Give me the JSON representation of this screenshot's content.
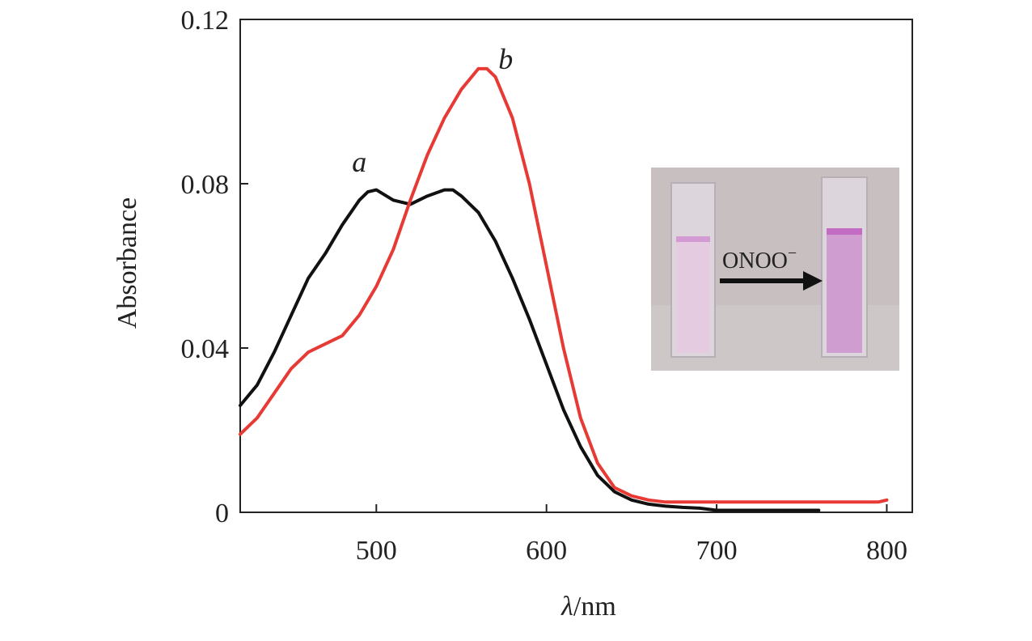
{
  "chart_data": {
    "type": "line",
    "xlabel_symbol": "λ",
    "xlabel_unit": "/nm",
    "ylabel": "Absorbance",
    "xlim": [
      420,
      815
    ],
    "ylim": [
      0,
      0.12
    ],
    "x_ticks": [
      500,
      600,
      700,
      800
    ],
    "x_tick_labels": [
      "500",
      "600",
      "700",
      "800"
    ],
    "y_ticks": [
      0,
      0.04,
      0.08,
      0.12
    ],
    "y_tick_labels": [
      "0",
      "0.04",
      "0.08",
      "0.12"
    ],
    "grid": false,
    "series": [
      {
        "name": "a",
        "color": "#111111",
        "x": [
          420,
          430,
          440,
          450,
          460,
          470,
          480,
          490,
          495,
          500,
          510,
          520,
          530,
          540,
          545,
          550,
          560,
          570,
          580,
          590,
          600,
          610,
          620,
          630,
          640,
          650,
          660,
          670,
          680,
          690,
          700,
          720,
          740,
          760
        ],
        "values": [
          0.026,
          0.031,
          0.039,
          0.048,
          0.057,
          0.063,
          0.07,
          0.076,
          0.078,
          0.0785,
          0.076,
          0.075,
          0.077,
          0.0785,
          0.0785,
          0.077,
          0.073,
          0.066,
          0.057,
          0.047,
          0.036,
          0.025,
          0.016,
          0.009,
          0.005,
          0.003,
          0.002,
          0.0015,
          0.0012,
          0.001,
          0.0005,
          0.0005,
          0.0005,
          0.0005
        ]
      },
      {
        "name": "b",
        "color": "#e83a35",
        "x": [
          420,
          430,
          440,
          450,
          460,
          470,
          480,
          490,
          500,
          510,
          520,
          530,
          540,
          550,
          560,
          565,
          570,
          580,
          590,
          600,
          610,
          620,
          630,
          640,
          650,
          660,
          670,
          680,
          700,
          750,
          795,
          800
        ],
        "values": [
          0.019,
          0.023,
          0.029,
          0.035,
          0.039,
          0.041,
          0.043,
          0.048,
          0.055,
          0.064,
          0.076,
          0.087,
          0.096,
          0.103,
          0.108,
          0.108,
          0.106,
          0.096,
          0.08,
          0.06,
          0.04,
          0.023,
          0.012,
          0.006,
          0.004,
          0.003,
          0.0025,
          0.0025,
          0.0025,
          0.0025,
          0.0025,
          0.003
        ]
      }
    ],
    "annotations": [
      {
        "text": "a",
        "x": 490,
        "y": 0.083
      },
      {
        "text": "b",
        "x": 576,
        "y": 0.108
      }
    ],
    "inset": {
      "label_main": "ONOO",
      "label_sup": "−",
      "colors": {
        "background": "#c7bfc0",
        "cuvette_glass": "#ddd5dc",
        "solution_light": "#e4cbe0",
        "solution_dark": "#cf9dd0",
        "meniscus": "#c36cc4",
        "arrow": "#111111"
      }
    }
  }
}
